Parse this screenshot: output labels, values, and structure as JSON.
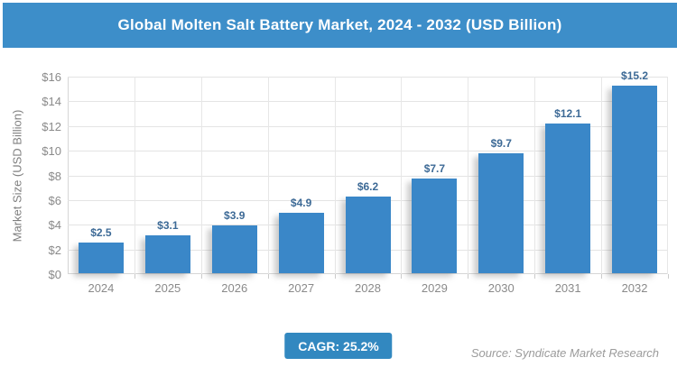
{
  "header": {
    "title": "Global Molten Salt Battery Market, 2024 - 2032 (USD Billion)",
    "bg_color": "#3d8ec9",
    "text_color": "#ffffff"
  },
  "chart_data": {
    "type": "bar",
    "categories": [
      "2024",
      "2025",
      "2026",
      "2027",
      "2028",
      "2029",
      "2030",
      "2031",
      "2032"
    ],
    "values": [
      2.5,
      3.1,
      3.9,
      4.9,
      6.2,
      7.7,
      9.7,
      12.1,
      15.2
    ],
    "value_labels": [
      "$2.5",
      "$3.1",
      "$3.9",
      "$4.9",
      "$6.2",
      "$7.7",
      "$9.7",
      "$12.1",
      "$15.2"
    ],
    "title": "Global Molten Salt Battery Market, 2024 - 2032 (USD Billion)",
    "xlabel": "",
    "ylabel": "Market Size (USD Billion)",
    "ylim": [
      0,
      16
    ],
    "ytick_step": 2,
    "ytick_labels": [
      "$0",
      "$2",
      "$4",
      "$6",
      "$8",
      "$10",
      "$12",
      "$14",
      "$16"
    ],
    "grid": "on",
    "legend": "none",
    "bar_color": "#3a87c8",
    "label_color": "#3d6a96"
  },
  "footer": {
    "cagr_label": "CAGR: 25.2%",
    "cagr_bg": "#3288c0",
    "cagr_text_color": "#ffffff",
    "source": "Source: Syndicate Market Research"
  }
}
